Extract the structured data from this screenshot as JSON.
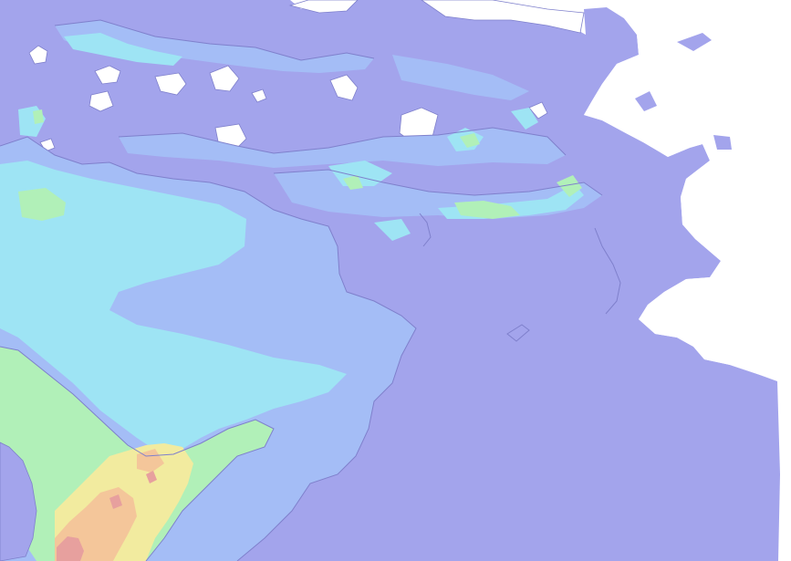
{
  "map": {
    "palette": {
      "background": "#ffffff",
      "level_0": "#a3a4ec",
      "level_1": "#a4bdf6",
      "level_2": "#9ee4f4",
      "level_3": "#b1f0b8",
      "level_4": "#f2eb9f",
      "level_5": "#f4c69a",
      "level_6": "#e7a09e",
      "contour_line": "#7f80cc"
    }
  }
}
